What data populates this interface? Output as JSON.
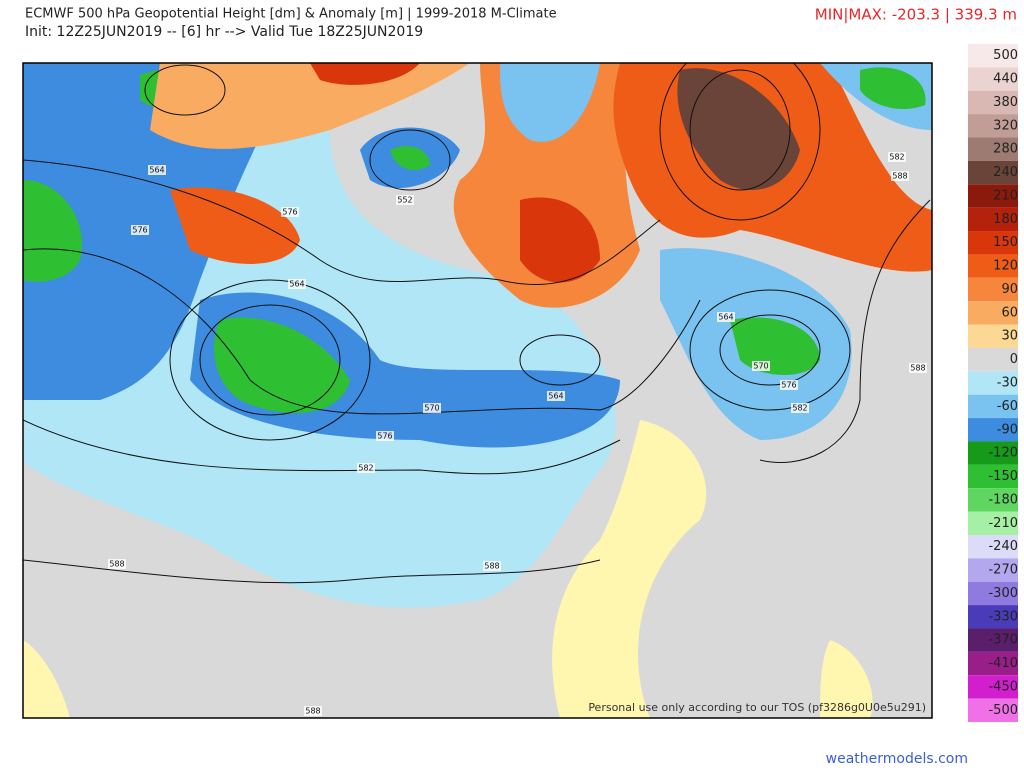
{
  "header": {
    "title": "ECMWF 500 hPa Geopotential Height [dm] & Anomaly [m] | 1999-2018 M-Climate",
    "init": "Init: 12Z25JUN2019 -- [6] hr --> Valid Tue 18Z25JUN2019",
    "minmax": "MIN|MAX: -203.3 | 339.3 m"
  },
  "map": {
    "contour_labels": [
      "564",
      "576",
      "576",
      "552",
      "564",
      "570",
      "576",
      "582",
      "564",
      "564",
      "570",
      "576",
      "582",
      "582",
      "588",
      "588",
      "588",
      "588",
      "588"
    ],
    "disclaimer": "Personal use only according to our TOS (pf3286g0U0e5u291)"
  },
  "colorbar": [
    {
      "label": "500",
      "color": "#f7e9e9"
    },
    {
      "label": "440",
      "color": "#ead3d1"
    },
    {
      "label": "380",
      "color": "#d9b8b4"
    },
    {
      "label": "320",
      "color": "#c29d97"
    },
    {
      "label": "280",
      "color": "#9e7b72"
    },
    {
      "label": "240",
      "color": "#6a4438"
    },
    {
      "label": "210",
      "color": "#8c1a0c"
    },
    {
      "label": "180",
      "color": "#b5220c"
    },
    {
      "label": "150",
      "color": "#d9360c"
    },
    {
      "label": "120",
      "color": "#ee5c18"
    },
    {
      "label": "90",
      "color": "#f5863c"
    },
    {
      "label": "60",
      "color": "#f9ab62"
    },
    {
      "label": "30",
      "color": "#fbd893"
    },
    {
      "label": "0",
      "color": "#d9d9d9"
    },
    {
      "label": "-30",
      "color": "#b0e6f6"
    },
    {
      "label": "-60",
      "color": "#7ac2f0"
    },
    {
      "label": "-90",
      "color": "#3d8ce0"
    },
    {
      "label": "-120",
      "color": "#169a1a"
    },
    {
      "label": "-150",
      "color": "#2fbf32"
    },
    {
      "label": "-180",
      "color": "#5fd65f"
    },
    {
      "label": "-210",
      "color": "#a6f0a6"
    },
    {
      "label": "-240",
      "color": "#dcdcf8"
    },
    {
      "label": "-270",
      "color": "#b3a8f0"
    },
    {
      "label": "-300",
      "color": "#8f7be0"
    },
    {
      "label": "-330",
      "color": "#4a3cb8"
    },
    {
      "label": "-370",
      "color": "#5a1e6a"
    },
    {
      "label": "-410",
      "color": "#9a1e8a"
    },
    {
      "label": "-450",
      "color": "#d31ed0"
    },
    {
      "label": "-500",
      "color": "#f070e8"
    }
  ],
  "footer": {
    "site": "weathermodels.com"
  }
}
